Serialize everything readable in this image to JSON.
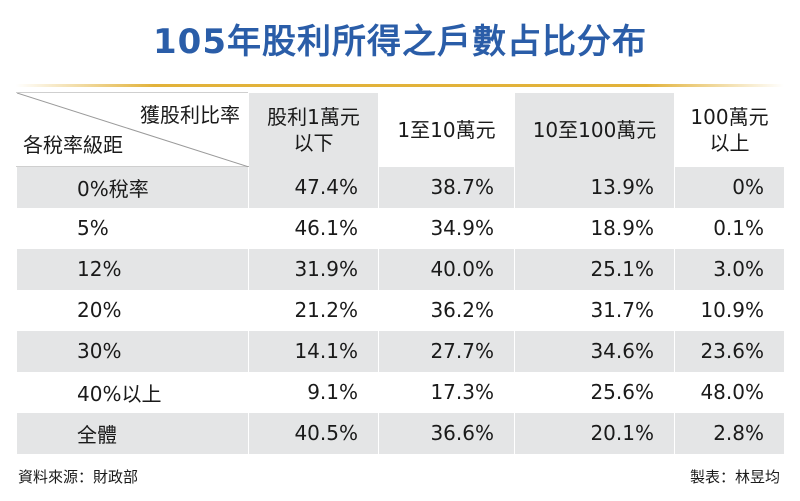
{
  "title": "105年股利所得之戶數占比分布",
  "header": {
    "diagonal_top": "獲股利比率",
    "diagonal_bottom": "各稅率級距",
    "columns": [
      {
        "line1": "股利1萬元",
        "line2": "以下"
      },
      {
        "line1": "1至10萬元",
        "line2": ""
      },
      {
        "line1": "10至100萬元",
        "line2": ""
      },
      {
        "line1": "100萬元",
        "line2": "以上"
      }
    ]
  },
  "rows": [
    {
      "label": "0%稅率",
      "cells": [
        "47.4%",
        "38.7%",
        "13.9%",
        "0%"
      ]
    },
    {
      "label": "5%",
      "cells": [
        "46.1%",
        "34.9%",
        "18.9%",
        "0.1%"
      ]
    },
    {
      "label": "12%",
      "cells": [
        "31.9%",
        "40.0%",
        "25.1%",
        "3.0%"
      ]
    },
    {
      "label": "20%",
      "cells": [
        "21.2%",
        "36.2%",
        "31.7%",
        "10.9%"
      ]
    },
    {
      "label": "30%",
      "cells": [
        "14.1%",
        "27.7%",
        "34.6%",
        "23.6%"
      ]
    },
    {
      "label": "40%以上",
      "cells": [
        "9.1%",
        "17.3%",
        "25.6%",
        "48.0%"
      ]
    },
    {
      "label": "全體",
      "cells": [
        "40.5%",
        "36.6%",
        "20.1%",
        "2.8%"
      ]
    }
  ],
  "footer": {
    "source": "資料來源：財政部",
    "credit": "製表：林昱均"
  },
  "colors": {
    "title": "#2a5da8",
    "accent_line": "#e2b23a",
    "row_shade": "#e4e5e6"
  },
  "chart_data": {
    "type": "table",
    "title": "105年股利所得之戶數占比分布",
    "row_header": "各稅率級距",
    "column_header": "獲股利比率",
    "columns": [
      "股利1萬元以下",
      "1至10萬元",
      "10至100萬元",
      "100萬元以上"
    ],
    "rows": [
      "0%稅率",
      "5%",
      "12%",
      "20%",
      "30%",
      "40%以上",
      "全體"
    ],
    "values": [
      [
        47.4,
        38.7,
        13.9,
        0
      ],
      [
        46.1,
        34.9,
        18.9,
        0.1
      ],
      [
        31.9,
        40.0,
        25.1,
        3.0
      ],
      [
        21.2,
        36.2,
        31.7,
        10.9
      ],
      [
        14.1,
        27.7,
        34.6,
        23.6
      ],
      [
        9.1,
        17.3,
        25.6,
        48.0
      ],
      [
        40.5,
        36.6,
        20.1,
        2.8
      ]
    ],
    "unit": "%"
  }
}
